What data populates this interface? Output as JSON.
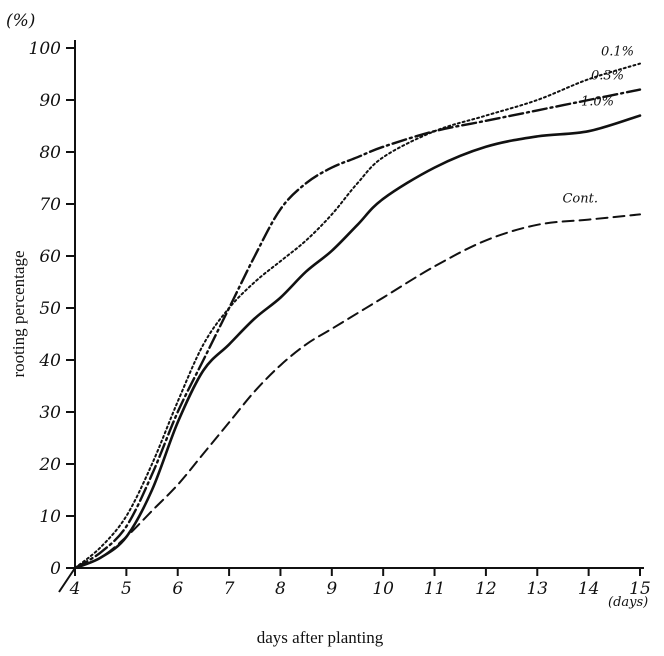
{
  "chart_data": {
    "type": "line",
    "xlabel": "days after planting",
    "ylabel": "rooting percentage",
    "y_unit": "(%)",
    "x_unit": "(days)",
    "xlim": [
      4,
      15
    ],
    "ylim": [
      0,
      100
    ],
    "x_ticks": [
      "4",
      "5",
      "6",
      "7",
      "8",
      "9",
      "10",
      "11",
      "12",
      "13",
      "14",
      "15"
    ],
    "y_ticks": [
      "0",
      "10",
      "20",
      "30",
      "40",
      "50",
      "60",
      "70",
      "80",
      "90",
      "100"
    ],
    "grid": false,
    "legend": "inline labels at right end of lines",
    "series": [
      {
        "name": "0.1%",
        "style": "dotted",
        "x": [
          4,
          4.5,
          5,
          5.5,
          6,
          6.5,
          7,
          7.5,
          8,
          8.5,
          9,
          9.5,
          10,
          11,
          12,
          13,
          14,
          15
        ],
        "y": [
          0,
          4,
          10,
          20,
          32,
          43,
          50,
          55,
          59,
          63,
          68,
          74,
          79,
          84,
          87,
          90,
          94,
          97
        ]
      },
      {
        "name": "0.3%",
        "style": "dash-dot",
        "x": [
          4,
          4.5,
          5,
          5.5,
          6,
          6.5,
          7,
          7.5,
          8,
          8.5,
          9,
          9.5,
          10,
          11,
          12,
          13,
          14,
          15
        ],
        "y": [
          0,
          3,
          8,
          18,
          30,
          40,
          50,
          60,
          69,
          74,
          77,
          79,
          81,
          84,
          86,
          88,
          90,
          92
        ]
      },
      {
        "name": "1.0%",
        "style": "solid",
        "x": [
          4,
          4.5,
          5,
          5.5,
          6,
          6.5,
          7,
          7.5,
          8,
          8.5,
          9,
          9.5,
          10,
          11,
          12,
          13,
          14,
          15
        ],
        "y": [
          0,
          2,
          6,
          15,
          28,
          38,
          43,
          48,
          52,
          57,
          61,
          66,
          71,
          77,
          81,
          83,
          84,
          87
        ]
      },
      {
        "name": "Cont.",
        "style": "dashed",
        "x": [
          4,
          4.5,
          5,
          5.5,
          6,
          6.5,
          7,
          7.5,
          8,
          8.5,
          9,
          9.5,
          10,
          11,
          12,
          13,
          14,
          15
        ],
        "y": [
          0,
          2,
          6,
          11,
          16,
          22,
          28,
          34,
          39,
          43,
          46,
          49,
          52,
          58,
          63,
          66,
          67,
          68
        ]
      }
    ]
  }
}
